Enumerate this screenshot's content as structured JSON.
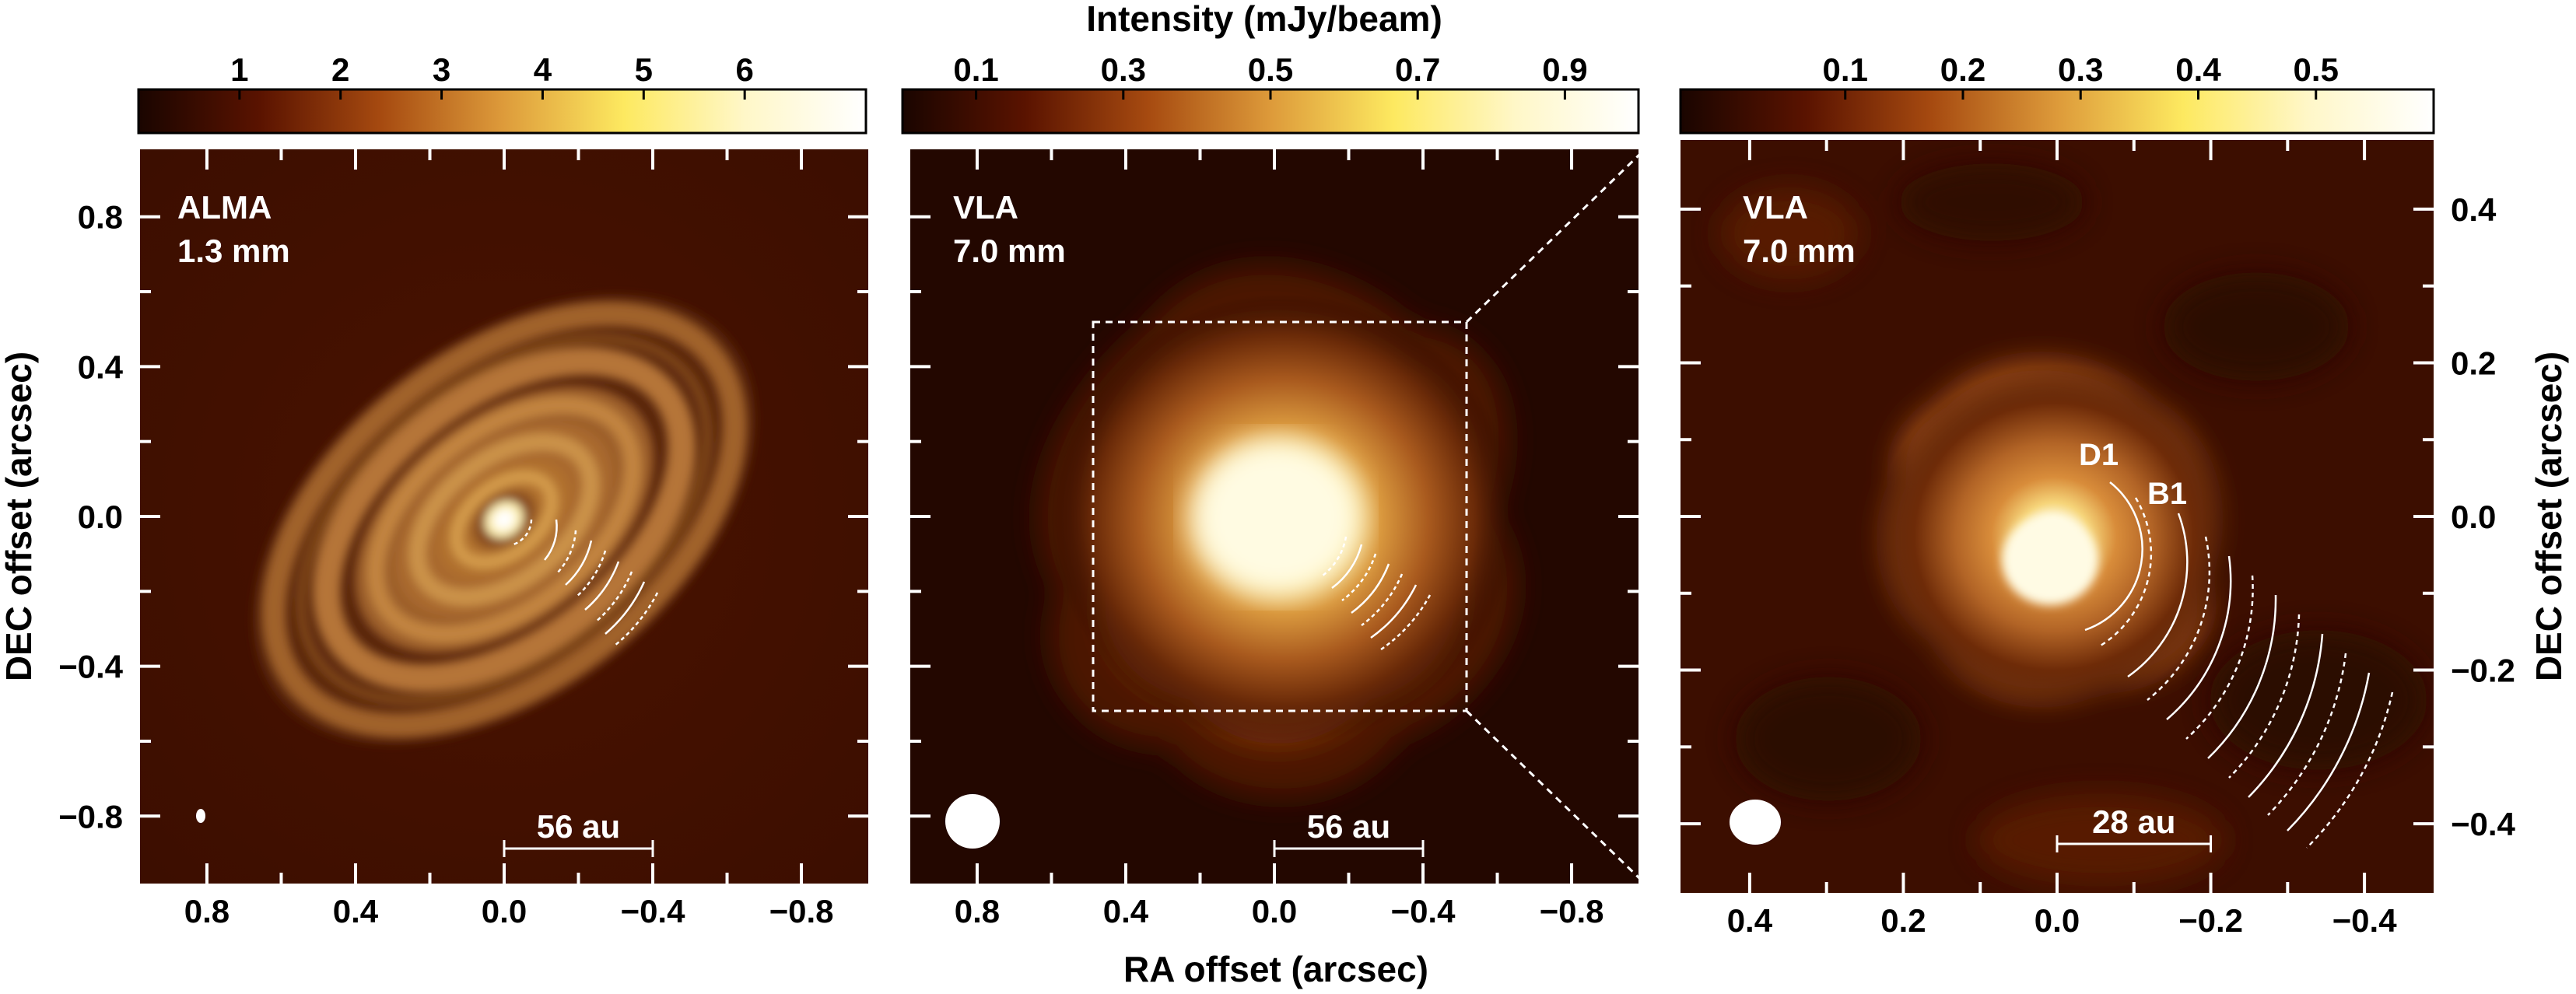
{
  "colorbar_title": "Intensity (mJy/beam)",
  "xlabel": "RA offset (arcsec)",
  "ylabel": "DEC offset (arcsec)",
  "colormap_stops": [
    "#1a0500",
    "#5a1300",
    "#a64a10",
    "#dd9a3a",
    "#fde960",
    "#fff7c8",
    "#ffffff"
  ],
  "panels": [
    {
      "instrument": "ALMA",
      "wavelength": "1.3 mm",
      "colorbar_ticks": [
        "1",
        "2",
        "3",
        "4",
        "5",
        "6"
      ],
      "colorbar_tick_values": [
        1,
        2,
        3,
        4,
        5,
        6
      ],
      "colorbar_range": [
        0,
        7.2
      ],
      "x_ticks": [
        "0.8",
        "0.4",
        "0.0",
        "−0.4",
        "−0.8"
      ],
      "x_tick_values": [
        0.8,
        0.4,
        0.0,
        -0.4,
        -0.8
      ],
      "y_ticks": [
        "0.8",
        "0.4",
        "0.0",
        "−0.4",
        "−0.8"
      ],
      "y_tick_values": [
        0.8,
        0.4,
        0.0,
        -0.4,
        -0.8
      ],
      "axis_range": [
        0.98,
        -0.98
      ],
      "scalebar_label": "56 au",
      "scalebar_arcsec": 0.4,
      "beam_arcsec": [
        0.03,
        0.045
      ]
    },
    {
      "instrument": "VLA",
      "wavelength": "7.0 mm",
      "colorbar_ticks": [
        "0.1",
        "0.3",
        "0.5",
        "0.7",
        "0.9"
      ],
      "colorbar_tick_values": [
        0.1,
        0.3,
        0.5,
        0.7,
        0.9
      ],
      "colorbar_range": [
        0.0,
        1.0
      ],
      "x_ticks": [
        "0.8",
        "0.4",
        "0.0",
        "−0.4",
        "−0.8"
      ],
      "x_tick_values": [
        0.8,
        0.4,
        0.0,
        -0.4,
        -0.8
      ],
      "y_ticks": [
        "0.8",
        "0.4",
        "0.0",
        "−0.4",
        "−0.8"
      ],
      "y_tick_values": [
        0.8,
        0.4,
        0.0,
        -0.4,
        -0.8
      ],
      "axis_range": [
        0.98,
        -0.98
      ],
      "scalebar_label": "56 au",
      "scalebar_arcsec": 0.4,
      "beam_arcsec": [
        0.145,
        0.145
      ],
      "zoom_box_arcsec": [
        0.5,
        -0.5
      ]
    },
    {
      "instrument": "VLA",
      "wavelength": "7.0 mm",
      "colorbar_ticks": [
        "0.1",
        "0.2",
        "0.3",
        "0.4",
        "0.5"
      ],
      "colorbar_tick_values": [
        0.1,
        0.2,
        0.3,
        0.4,
        0.5
      ],
      "colorbar_range": [
        -0.04,
        0.6
      ],
      "x_ticks": [
        "0.4",
        "0.2",
        "0.0",
        "−0.2",
        "−0.4"
      ],
      "x_tick_values": [
        0.4,
        0.2,
        0.0,
        -0.2,
        -0.4
      ],
      "y_ticks": [
        "0.4",
        "0.2",
        "0.0",
        "−0.2",
        "−0.4"
      ],
      "y_tick_values": [
        0.4,
        0.2,
        0.0,
        -0.2,
        -0.4
      ],
      "axis_range": [
        0.49,
        -0.49
      ],
      "scalebar_label": "28 au",
      "scalebar_arcsec": 0.2,
      "beam_arcsec": [
        0.07,
        0.06
      ],
      "annotations": [
        "D1",
        "B1"
      ]
    }
  ]
}
